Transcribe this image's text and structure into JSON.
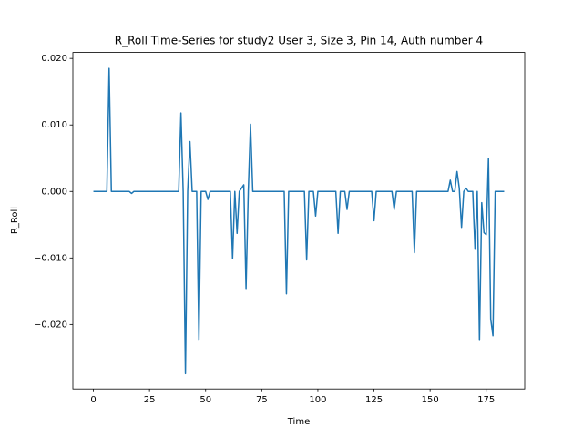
{
  "chart_data": {
    "type": "line",
    "title": "R_Roll Time-Series for study2 User 3, Size 3, Pin 14, Auth number 4",
    "x_label": "Time",
    "y_label": "R_Roll",
    "x": [
      0,
      1,
      2,
      3,
      4,
      5,
      6,
      7,
      8,
      9,
      10,
      11,
      12,
      13,
      14,
      15,
      16,
      17,
      18,
      19,
      20,
      21,
      22,
      23,
      24,
      25,
      26,
      27,
      28,
      29,
      30,
      31,
      32,
      33,
      34,
      35,
      36,
      37,
      38,
      39,
      40,
      41,
      42,
      43,
      44,
      45,
      46,
      47,
      48,
      49,
      50,
      51,
      52,
      53,
      54,
      55,
      56,
      57,
      58,
      59,
      60,
      61,
      62,
      63,
      64,
      65,
      66,
      67,
      68,
      69,
      70,
      71,
      72,
      73,
      74,
      75,
      76,
      77,
      78,
      79,
      80,
      81,
      82,
      83,
      84,
      85,
      86,
      87,
      88,
      89,
      90,
      91,
      92,
      93,
      94,
      95,
      96,
      97,
      98,
      99,
      100,
      101,
      102,
      103,
      104,
      105,
      106,
      107,
      108,
      109,
      110,
      111,
      112,
      113,
      114,
      115,
      116,
      117,
      118,
      119,
      120,
      121,
      122,
      123,
      124,
      125,
      126,
      127,
      128,
      129,
      130,
      131,
      132,
      133,
      134,
      135,
      136,
      137,
      138,
      139,
      140,
      141,
      142,
      143,
      144,
      145,
      146,
      147,
      148,
      149,
      150,
      151,
      152,
      153,
      154,
      155,
      156,
      157,
      158,
      159,
      160,
      161,
      162,
      163,
      164,
      165,
      166,
      167,
      168,
      169,
      170,
      171,
      172,
      173,
      174,
      175,
      176,
      177,
      178,
      179,
      180,
      181,
      182,
      183
    ],
    "series": [
      {
        "name": "R_Roll",
        "color": "#1f77b4",
        "values": [
          0,
          0,
          0,
          0,
          0,
          0,
          0,
          0.0185,
          0,
          0,
          0,
          0,
          0,
          0,
          0,
          0,
          0,
          -0.0003,
          0,
          0,
          0,
          0,
          0,
          0,
          0,
          0,
          0,
          0,
          0,
          0,
          0,
          0,
          0,
          0,
          0,
          0,
          0,
          0,
          0,
          0.0118,
          0,
          -0.0274,
          0,
          0.0075,
          0,
          0,
          0,
          -0.0224,
          0,
          0,
          0,
          -0.0012,
          0,
          0,
          0,
          0,
          0,
          0,
          0,
          0,
          0,
          0,
          -0.0101,
          0,
          -0.0063,
          0,
          0.0005,
          0.001,
          -0.0146,
          0,
          0.0101,
          0,
          0,
          0,
          0,
          0,
          0,
          0,
          0,
          0,
          0,
          0,
          0,
          0,
          0,
          0,
          -0.0154,
          0,
          0,
          0,
          0,
          0,
          0,
          0,
          0,
          -0.0103,
          0,
          0,
          0,
          -0.0037,
          0,
          0,
          0,
          0,
          0,
          0,
          0,
          0,
          0,
          -0.0063,
          0,
          0,
          0,
          -0.0027,
          0,
          0,
          0,
          0,
          0,
          0,
          0,
          0,
          0,
          0,
          0,
          -0.0044,
          0,
          0,
          0,
          0,
          0,
          0,
          0,
          0,
          -0.0027,
          0,
          0,
          0,
          0,
          0,
          0,
          0,
          0,
          -0.0092,
          0,
          0,
          0,
          0,
          0,
          0,
          0,
          0,
          0,
          0,
          0,
          0,
          0,
          0,
          0,
          0.0017,
          0,
          0,
          0.003,
          0.0005,
          -0.0054,
          0,
          0.0005,
          0,
          0,
          0,
          -0.0087,
          0,
          -0.0224,
          -0.0017,
          -0.0062,
          -0.0065,
          0.005,
          -0.0192,
          -0.0217,
          0,
          0,
          0,
          0,
          0
        ]
      }
    ],
    "xlim": [
      -9.15,
      192.15
    ],
    "ylim": [
      -0.0297,
      0.0209
    ],
    "xticks": [
      0,
      25,
      50,
      75,
      100,
      125,
      150,
      175
    ],
    "yticks": [
      {
        "value": -0.02,
        "label": "−0.020"
      },
      {
        "value": -0.01,
        "label": "−0.010"
      },
      {
        "value": 0,
        "label": "0.000"
      },
      {
        "value": 0.01,
        "label": "0.010"
      },
      {
        "value": 0.02,
        "label": "0.020"
      }
    ]
  }
}
